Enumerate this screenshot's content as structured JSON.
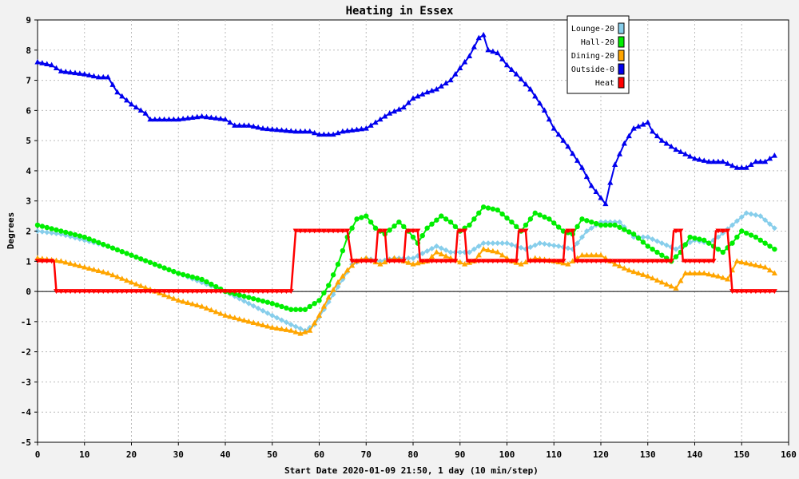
{
  "chart_data": {
    "type": "line",
    "title": "Heating in Essex",
    "xlabel": "Start Date 2020-01-09 21:50, 1 day (10 min/step)",
    "ylabel": "Degrees",
    "xlim": [
      0,
      160
    ],
    "ylim": [
      -5,
      9
    ],
    "xticks": [
      0,
      10,
      20,
      30,
      40,
      50,
      60,
      70,
      80,
      90,
      100,
      110,
      120,
      130,
      140,
      150,
      160
    ],
    "yticks": [
      -5,
      -4,
      -3,
      -2,
      -1,
      0,
      1,
      2,
      3,
      4,
      5,
      6,
      7,
      8,
      9
    ],
    "grid": true,
    "legend_position": "top-right",
    "series": [
      {
        "name": "Lounge-20",
        "color": "#87ceeb",
        "marker": "diamond",
        "points": [
          [
            0,
            2.0
          ],
          [
            5,
            1.9
          ],
          [
            10,
            1.7
          ],
          [
            15,
            1.5
          ],
          [
            20,
            1.2
          ],
          [
            25,
            0.9
          ],
          [
            30,
            0.6
          ],
          [
            35,
            0.3
          ],
          [
            40,
            0.0
          ],
          [
            45,
            -0.4
          ],
          [
            50,
            -0.8
          ],
          [
            54,
            -1.1
          ],
          [
            57,
            -1.3
          ],
          [
            59,
            -1.1
          ],
          [
            61,
            -0.6
          ],
          [
            63,
            -0.1
          ],
          [
            65,
            0.4
          ],
          [
            67,
            0.9
          ],
          [
            70,
            1.1
          ],
          [
            73,
            1.0
          ],
          [
            76,
            1.1
          ],
          [
            80,
            1.1
          ],
          [
            85,
            1.5
          ],
          [
            88,
            1.3
          ],
          [
            92,
            1.3
          ],
          [
            95,
            1.6
          ],
          [
            100,
            1.6
          ],
          [
            104,
            1.4
          ],
          [
            107,
            1.6
          ],
          [
            111,
            1.5
          ],
          [
            114,
            1.4
          ],
          [
            117,
            2.0
          ],
          [
            120,
            2.3
          ],
          [
            124,
            2.3
          ],
          [
            127,
            1.8
          ],
          [
            130,
            1.8
          ],
          [
            133,
            1.6
          ],
          [
            136,
            1.4
          ],
          [
            140,
            1.7
          ],
          [
            143,
            1.6
          ],
          [
            145,
            1.8
          ],
          [
            148,
            2.2
          ],
          [
            151,
            2.6
          ],
          [
            154,
            2.5
          ],
          [
            157,
            2.1
          ]
        ]
      },
      {
        "name": "Hall-20",
        "color": "#00ee00",
        "marker": "circle",
        "points": [
          [
            0,
            2.2
          ],
          [
            5,
            2.0
          ],
          [
            10,
            1.8
          ],
          [
            15,
            1.5
          ],
          [
            20,
            1.2
          ],
          [
            25,
            0.9
          ],
          [
            30,
            0.6
          ],
          [
            35,
            0.4
          ],
          [
            40,
            0.0
          ],
          [
            45,
            -0.2
          ],
          [
            50,
            -0.4
          ],
          [
            54,
            -0.6
          ],
          [
            57,
            -0.6
          ],
          [
            60,
            -0.3
          ],
          [
            62,
            0.2
          ],
          [
            64,
            0.9
          ],
          [
            66,
            1.8
          ],
          [
            68,
            2.4
          ],
          [
            70,
            2.5
          ],
          [
            72,
            2.1
          ],
          [
            74,
            1.9
          ],
          [
            77,
            2.3
          ],
          [
            79,
            2.0
          ],
          [
            81,
            1.6
          ],
          [
            83,
            2.1
          ],
          [
            86,
            2.5
          ],
          [
            88,
            2.3
          ],
          [
            90,
            2.0
          ],
          [
            92,
            2.2
          ],
          [
            95,
            2.8
          ],
          [
            98,
            2.7
          ],
          [
            101,
            2.3
          ],
          [
            103,
            2.0
          ],
          [
            106,
            2.6
          ],
          [
            109,
            2.4
          ],
          [
            112,
            2.0
          ],
          [
            114,
            1.9
          ],
          [
            116,
            2.4
          ],
          [
            120,
            2.2
          ],
          [
            123,
            2.2
          ],
          [
            127,
            1.9
          ],
          [
            130,
            1.5
          ],
          [
            133,
            1.2
          ],
          [
            135,
            1.0
          ],
          [
            137,
            1.3
          ],
          [
            139,
            1.8
          ],
          [
            142,
            1.7
          ],
          [
            144,
            1.5
          ],
          [
            146,
            1.3
          ],
          [
            148,
            1.6
          ],
          [
            150,
            2.0
          ],
          [
            153,
            1.8
          ],
          [
            157,
            1.4
          ]
        ]
      },
      {
        "name": "Dining-20",
        "color": "#ffa500",
        "marker": "triangle",
        "points": [
          [
            0,
            1.1
          ],
          [
            5,
            1.0
          ],
          [
            10,
            0.8
          ],
          [
            15,
            0.6
          ],
          [
            20,
            0.3
          ],
          [
            25,
            0.0
          ],
          [
            30,
            -0.3
          ],
          [
            35,
            -0.5
          ],
          [
            40,
            -0.8
          ],
          [
            45,
            -1.0
          ],
          [
            50,
            -1.2
          ],
          [
            54,
            -1.3
          ],
          [
            56,
            -1.4
          ],
          [
            58,
            -1.3
          ],
          [
            60,
            -0.8
          ],
          [
            62,
            -0.2
          ],
          [
            64,
            0.3
          ],
          [
            66,
            0.7
          ],
          [
            68,
            1.0
          ],
          [
            70,
            1.1
          ],
          [
            73,
            0.9
          ],
          [
            76,
            1.1
          ],
          [
            80,
            0.9
          ],
          [
            83,
            1.0
          ],
          [
            85,
            1.3
          ],
          [
            88,
            1.1
          ],
          [
            91,
            0.9
          ],
          [
            93,
            1.0
          ],
          [
            95,
            1.4
          ],
          [
            98,
            1.3
          ],
          [
            101,
            1.0
          ],
          [
            103,
            0.9
          ],
          [
            106,
            1.1
          ],
          [
            110,
            1.0
          ],
          [
            113,
            0.9
          ],
          [
            116,
            1.2
          ],
          [
            120,
            1.2
          ],
          [
            123,
            0.9
          ],
          [
            126,
            0.7
          ],
          [
            130,
            0.5
          ],
          [
            133,
            0.3
          ],
          [
            136,
            0.1
          ],
          [
            138,
            0.6
          ],
          [
            142,
            0.6
          ],
          [
            145,
            0.5
          ],
          [
            147,
            0.4
          ],
          [
            149,
            1.0
          ],
          [
            152,
            0.9
          ],
          [
            155,
            0.8
          ],
          [
            157,
            0.6
          ]
        ]
      },
      {
        "name": "Outside-0",
        "color": "#0000ee",
        "marker": "triangle",
        "points": [
          [
            0,
            7.6
          ],
          [
            3,
            7.5
          ],
          [
            5,
            7.3
          ],
          [
            10,
            7.2
          ],
          [
            13,
            7.1
          ],
          [
            15,
            7.1
          ],
          [
            17,
            6.6
          ],
          [
            20,
            6.2
          ],
          [
            23,
            5.9
          ],
          [
            24,
            5.7
          ],
          [
            30,
            5.7
          ],
          [
            35,
            5.8
          ],
          [
            40,
            5.7
          ],
          [
            42,
            5.5
          ],
          [
            45,
            5.5
          ],
          [
            48,
            5.4
          ],
          [
            55,
            5.3
          ],
          [
            58,
            5.3
          ],
          [
            60,
            5.2
          ],
          [
            63,
            5.2
          ],
          [
            65,
            5.3
          ],
          [
            70,
            5.4
          ],
          [
            72,
            5.6
          ],
          [
            75,
            5.9
          ],
          [
            78,
            6.1
          ],
          [
            80,
            6.4
          ],
          [
            83,
            6.6
          ],
          [
            85,
            6.7
          ],
          [
            88,
            7.0
          ],
          [
            90,
            7.4
          ],
          [
            92,
            7.8
          ],
          [
            94,
            8.4
          ],
          [
            95,
            8.5
          ],
          [
            96,
            8.0
          ],
          [
            98,
            7.9
          ],
          [
            100,
            7.5
          ],
          [
            102,
            7.2
          ],
          [
            105,
            6.7
          ],
          [
            108,
            6.0
          ],
          [
            110,
            5.4
          ],
          [
            113,
            4.8
          ],
          [
            116,
            4.1
          ],
          [
            118,
            3.5
          ],
          [
            120,
            3.1
          ],
          [
            121,
            2.9
          ],
          [
            122,
            3.6
          ],
          [
            123,
            4.2
          ],
          [
            125,
            4.9
          ],
          [
            127,
            5.4
          ],
          [
            130,
            5.6
          ],
          [
            131,
            5.3
          ],
          [
            133,
            5.0
          ],
          [
            136,
            4.7
          ],
          [
            140,
            4.4
          ],
          [
            143,
            4.3
          ],
          [
            146,
            4.3
          ],
          [
            149,
            4.1
          ],
          [
            151,
            4.1
          ],
          [
            153,
            4.3
          ],
          [
            155,
            4.3
          ],
          [
            157,
            4.5
          ]
        ]
      },
      {
        "name": "Heat",
        "color": "#ff0000",
        "marker": "triangle-down",
        "step": true,
        "points": [
          [
            0,
            1
          ],
          [
            3.5,
            1
          ],
          [
            4,
            0
          ],
          [
            54,
            0
          ],
          [
            55,
            2
          ],
          [
            66,
            2
          ],
          [
            67,
            1
          ],
          [
            72,
            1
          ],
          [
            72.5,
            2
          ],
          [
            74,
            2
          ],
          [
            74.5,
            1
          ],
          [
            78,
            1
          ],
          [
            78.5,
            2
          ],
          [
            81,
            2
          ],
          [
            81.5,
            1
          ],
          [
            89,
            1
          ],
          [
            89.5,
            2
          ],
          [
            91,
            2
          ],
          [
            91.5,
            1
          ],
          [
            102,
            1
          ],
          [
            102.5,
            2
          ],
          [
            104,
            2
          ],
          [
            104.5,
            1
          ],
          [
            112,
            1
          ],
          [
            112.5,
            2
          ],
          [
            114,
            2
          ],
          [
            114.5,
            1
          ],
          [
            135,
            1
          ],
          [
            135.5,
            2
          ],
          [
            137,
            2
          ],
          [
            137.5,
            1
          ],
          [
            144,
            1
          ],
          [
            144.5,
            2
          ],
          [
            147,
            2
          ],
          [
            148,
            0
          ],
          [
            157,
            0
          ]
        ]
      }
    ]
  }
}
